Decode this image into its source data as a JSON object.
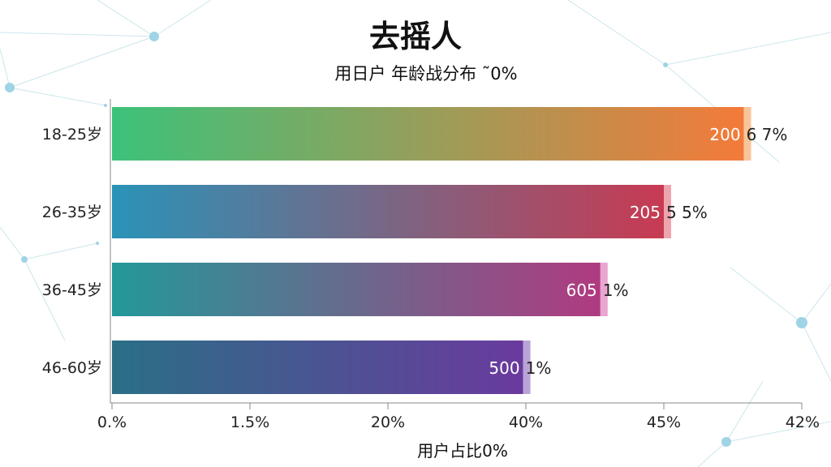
{
  "chart_data": {
    "type": "bar",
    "orientation": "horizontal",
    "title": "去摇人",
    "subtitle": "用日户   年龄战分布 ˜0%",
    "xlabel": "用户占比0%",
    "categories": [
      "18-25岁",
      "26-35岁",
      "36-45岁",
      "46-60岁"
    ],
    "values": [
      45.8,
      40.0,
      35.4,
      29.8
    ],
    "value_labels": [
      "200",
      "205",
      "605",
      "500"
    ],
    "percent_labels": [
      "6 7%",
      "5 5%",
      "1%",
      "1%"
    ],
    "x_ticks": [
      "0.%",
      "1.5%",
      "20%",
      "40%",
      "45%",
      "42%"
    ],
    "xlim": [
      0,
      50
    ],
    "grid": false,
    "bar_gradients": [
      [
        "#3cc27a",
        "#f47a3a"
      ],
      [
        "#2a93b8",
        "#c83a52"
      ],
      [
        "#23989a",
        "#b03a80"
      ],
      [
        "#2a6f86",
        "#6a3a9e"
      ]
    ],
    "bar_tip_colors": [
      "#f8c59a",
      "#eea4ad",
      "#e9a6cf",
      "#b9a3d8"
    ]
  }
}
